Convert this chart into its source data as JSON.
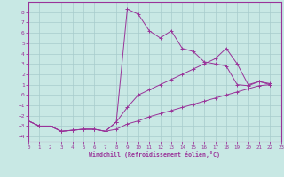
{
  "xlabel": "Windchill (Refroidissement éolien,°C)",
  "background_color": "#c8e8e4",
  "grid_color": "#a8cccc",
  "line_color": "#993399",
  "spine_color": "#993399",
  "xlim": [
    0,
    23
  ],
  "ylim": [
    -4.5,
    9.0
  ],
  "xticks": [
    0,
    1,
    2,
    3,
    4,
    5,
    6,
    7,
    8,
    9,
    10,
    11,
    12,
    13,
    14,
    15,
    16,
    17,
    18,
    19,
    20,
    21,
    22,
    23
  ],
  "yticks": [
    -4,
    -3,
    -2,
    -1,
    0,
    1,
    2,
    3,
    4,
    5,
    6,
    7,
    8
  ],
  "curve1_x": [
    0,
    1,
    2,
    3,
    4,
    5,
    6,
    7,
    8,
    9,
    10,
    11,
    12,
    13,
    14,
    15,
    16,
    17,
    18,
    19,
    20,
    21,
    22
  ],
  "curve1_y": [
    -2.5,
    -3.0,
    -3.0,
    -3.5,
    -3.4,
    -3.3,
    -3.3,
    -3.5,
    -2.6,
    8.3,
    7.8,
    6.2,
    5.5,
    6.2,
    4.5,
    4.2,
    3.2,
    3.0,
    2.8,
    1.0,
    0.9,
    1.3,
    1.1
  ],
  "curve2_x": [
    0,
    1,
    2,
    3,
    4,
    5,
    6,
    7,
    8,
    9,
    10,
    11,
    12,
    13,
    14,
    15,
    16,
    17,
    18,
    19,
    20,
    21,
    22
  ],
  "curve2_y": [
    -2.5,
    -3.0,
    -3.0,
    -3.5,
    -3.4,
    -3.3,
    -3.3,
    -3.5,
    -3.3,
    -2.8,
    -2.5,
    -2.1,
    -1.8,
    -1.5,
    -1.2,
    -0.9,
    -0.6,
    -0.3,
    0.0,
    0.3,
    0.6,
    0.9,
    1.0
  ],
  "curve3_x": [
    0,
    1,
    2,
    3,
    4,
    5,
    6,
    7,
    8,
    9,
    10,
    11,
    12,
    13,
    14,
    15,
    16,
    17,
    18,
    19,
    20,
    21,
    22
  ],
  "curve3_y": [
    -2.5,
    -3.0,
    -3.0,
    -3.5,
    -3.4,
    -3.3,
    -3.3,
    -3.5,
    -2.6,
    -1.2,
    0.0,
    0.5,
    1.0,
    1.5,
    2.0,
    2.5,
    3.0,
    3.5,
    4.5,
    3.0,
    1.0,
    1.3,
    1.0
  ]
}
